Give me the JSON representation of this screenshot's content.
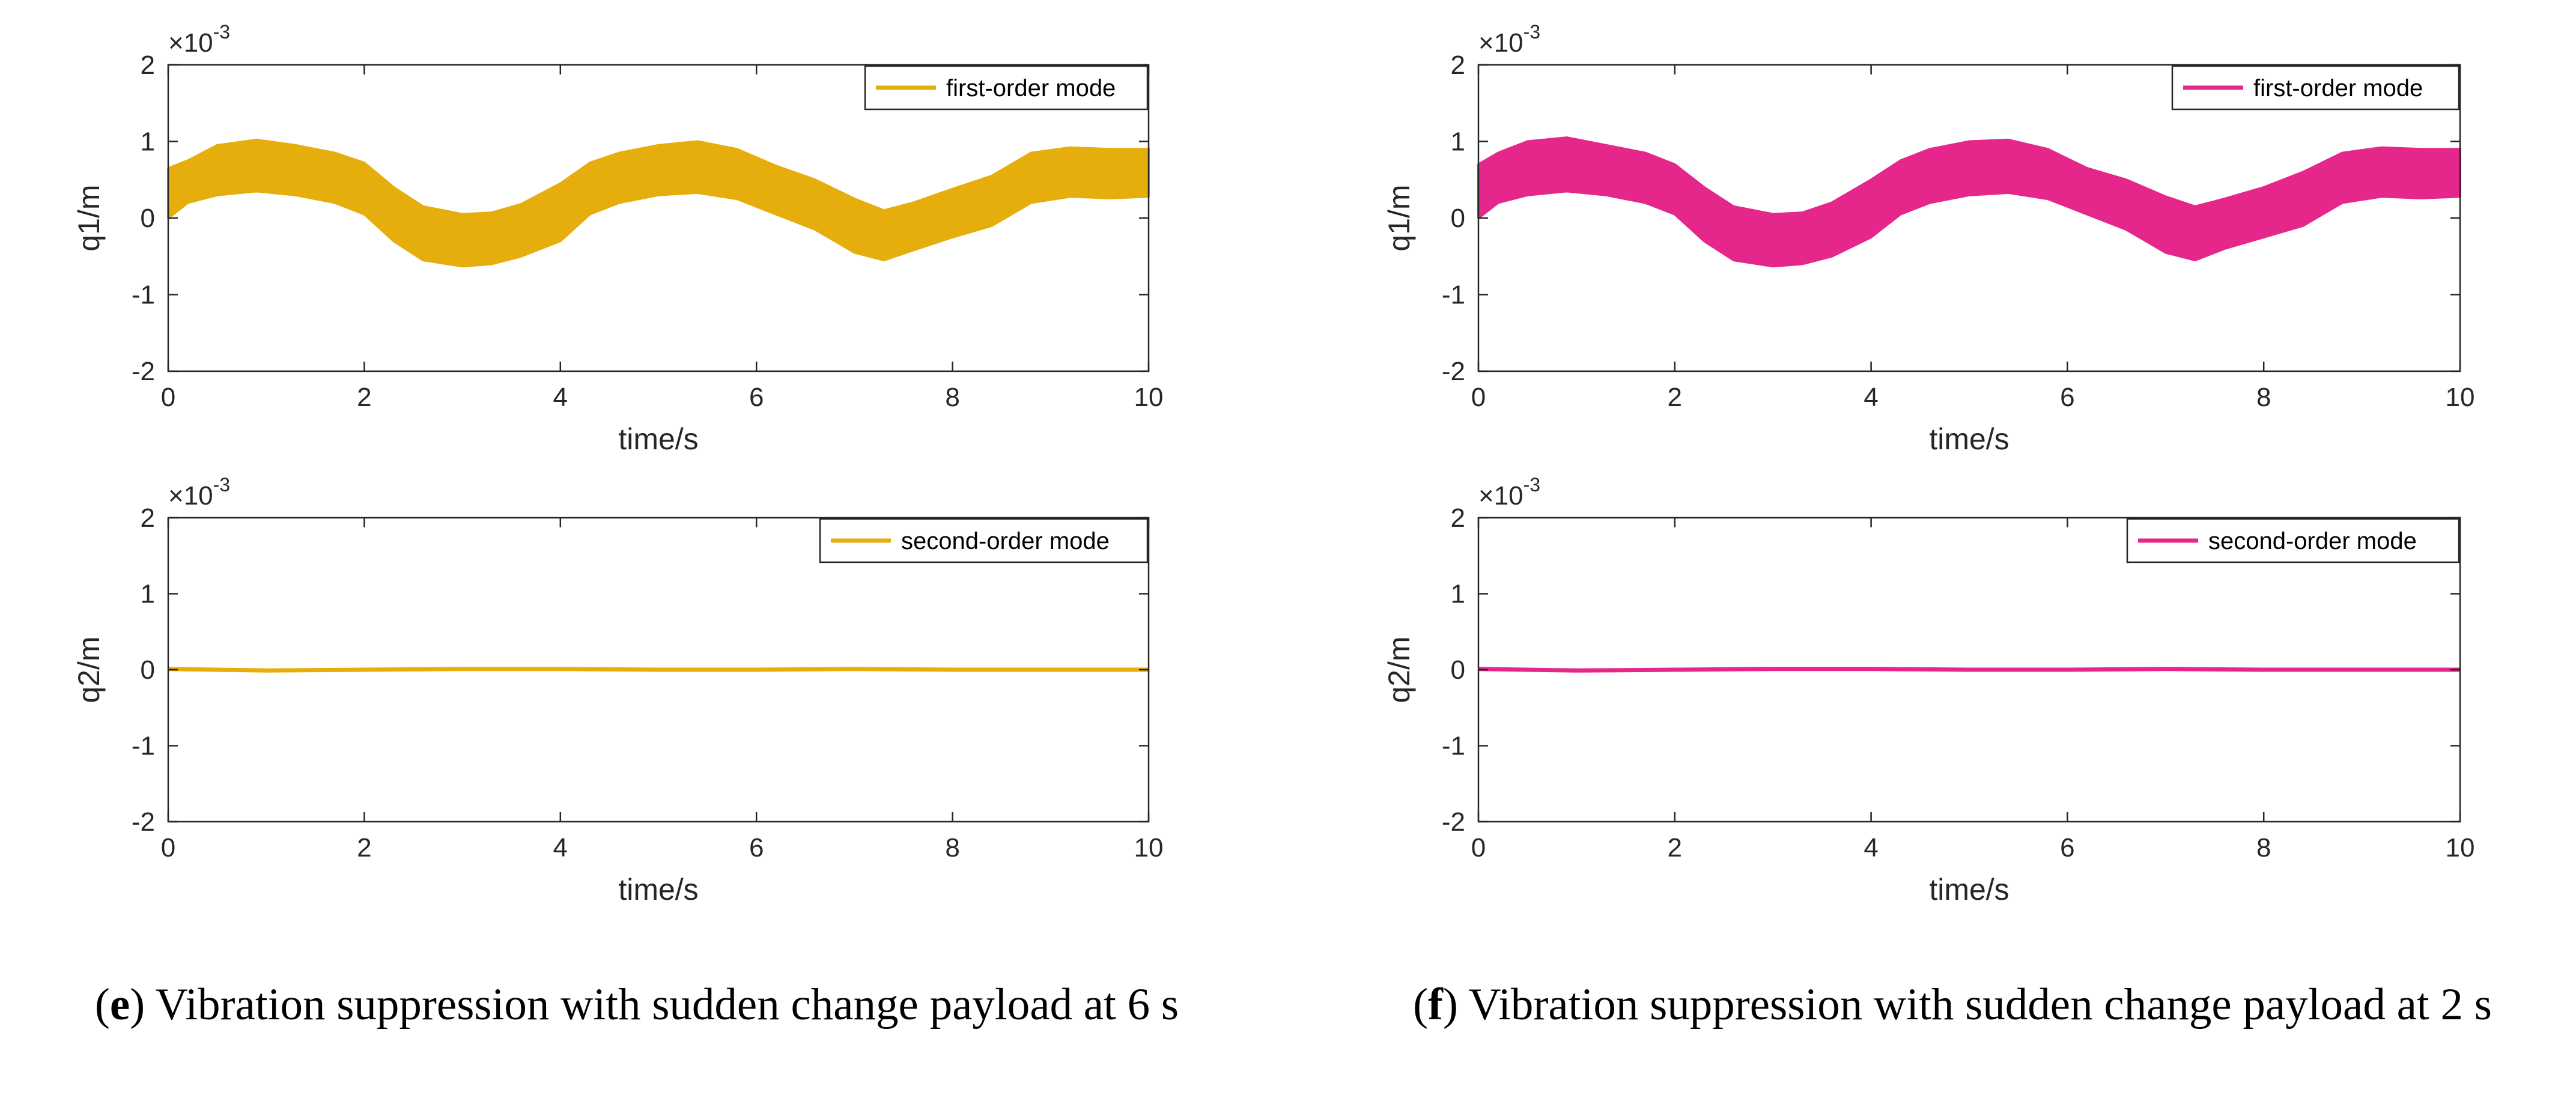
{
  "colors": {
    "e": "#E6AE0C",
    "f": "#E5268A",
    "axis": "#262626"
  },
  "chart_data": [
    {
      "panel": "e",
      "position": "top",
      "type": "line",
      "title": "",
      "xlabel": "time/s",
      "ylabel": "q1/m",
      "xlim": [
        0,
        10
      ],
      "ylim": [
        -2,
        2
      ],
      "xticks": [
        0,
        2,
        4,
        6,
        8,
        10
      ],
      "yticks": [
        -2,
        -1,
        0,
        1,
        2
      ],
      "y_exponent_base": "×10",
      "y_exponent_power": "-3",
      "series": [
        {
          "name": "first-order mode",
          "render": "band",
          "x": [
            0.0,
            0.2,
            0.5,
            0.9,
            1.3,
            1.7,
            2.0,
            2.3,
            2.6,
            3.0,
            3.3,
            3.6,
            4.0,
            4.3,
            4.6,
            5.0,
            5.4,
            5.8,
            6.2,
            6.6,
            7.0,
            7.3,
            7.6,
            8.0,
            8.4,
            8.8,
            9.2,
            9.6,
            10.0
          ],
          "upper": [
            0.65,
            0.75,
            0.95,
            1.02,
            0.95,
            0.85,
            0.72,
            0.4,
            0.15,
            0.05,
            0.07,
            0.18,
            0.45,
            0.72,
            0.85,
            0.95,
            1.0,
            0.9,
            0.68,
            0.5,
            0.25,
            0.1,
            0.2,
            0.38,
            0.55,
            0.85,
            0.92,
            0.9,
            0.9
          ],
          "lower": [
            0.0,
            0.2,
            0.3,
            0.35,
            0.3,
            0.2,
            0.05,
            -0.3,
            -0.55,
            -0.63,
            -0.6,
            -0.5,
            -0.3,
            0.05,
            0.2,
            0.3,
            0.33,
            0.25,
            0.05,
            -0.15,
            -0.45,
            -0.55,
            -0.42,
            -0.25,
            -0.1,
            0.2,
            0.28,
            0.26,
            0.28
          ]
        }
      ]
    },
    {
      "panel": "e",
      "position": "bottom",
      "type": "line",
      "title": "",
      "xlabel": "time/s",
      "ylabel": "q2/m",
      "xlim": [
        0,
        10
      ],
      "ylim": [
        -2,
        2
      ],
      "xticks": [
        0,
        2,
        4,
        6,
        8,
        10
      ],
      "yticks": [
        -2,
        -1,
        0,
        1,
        2
      ],
      "y_exponent_base": "×10",
      "y_exponent_power": "-3",
      "series": [
        {
          "name": "second-order mode",
          "render": "line",
          "x": [
            0,
            1,
            2,
            3,
            4,
            5,
            6,
            7,
            8,
            9,
            10
          ],
          "y": [
            0.01,
            -0.01,
            0.0,
            0.01,
            0.01,
            0.0,
            0.0,
            0.01,
            0.0,
            0.0,
            0.0
          ]
        }
      ]
    },
    {
      "panel": "f",
      "position": "top",
      "type": "line",
      "title": "",
      "xlabel": "time/s",
      "ylabel": "q1/m",
      "xlim": [
        0,
        10
      ],
      "ylim": [
        -2,
        2
      ],
      "xticks": [
        0,
        2,
        4,
        6,
        8,
        10
      ],
      "yticks": [
        -2,
        -1,
        0,
        1,
        2
      ],
      "y_exponent_base": "×10",
      "y_exponent_power": "-3",
      "series": [
        {
          "name": "first-order mode",
          "render": "band",
          "x": [
            0.0,
            0.2,
            0.5,
            0.9,
            1.3,
            1.7,
            2.0,
            2.3,
            2.6,
            3.0,
            3.3,
            3.6,
            4.0,
            4.3,
            4.6,
            5.0,
            5.4,
            5.8,
            6.2,
            6.6,
            7.0,
            7.3,
            7.6,
            8.0,
            8.4,
            8.8,
            9.2,
            9.6,
            10.0
          ],
          "upper": [
            0.7,
            0.85,
            1.0,
            1.05,
            0.95,
            0.85,
            0.7,
            0.4,
            0.15,
            0.05,
            0.07,
            0.2,
            0.5,
            0.75,
            0.9,
            1.0,
            1.02,
            0.9,
            0.65,
            0.5,
            0.28,
            0.15,
            0.25,
            0.4,
            0.6,
            0.85,
            0.92,
            0.9,
            0.9
          ],
          "lower": [
            0.0,
            0.2,
            0.3,
            0.35,
            0.3,
            0.2,
            0.05,
            -0.3,
            -0.55,
            -0.63,
            -0.6,
            -0.5,
            -0.25,
            0.05,
            0.2,
            0.3,
            0.33,
            0.25,
            0.05,
            -0.15,
            -0.45,
            -0.55,
            -0.4,
            -0.25,
            -0.1,
            0.2,
            0.28,
            0.26,
            0.28
          ]
        }
      ]
    },
    {
      "panel": "f",
      "position": "bottom",
      "type": "line",
      "title": "",
      "xlabel": "time/s",
      "ylabel": "q2/m",
      "xlim": [
        0,
        10
      ],
      "ylim": [
        -2,
        2
      ],
      "xticks": [
        0,
        2,
        4,
        6,
        8,
        10
      ],
      "yticks": [
        -2,
        -1,
        0,
        1,
        2
      ],
      "y_exponent_base": "×10",
      "y_exponent_power": "-3",
      "series": [
        {
          "name": "second-order mode",
          "render": "line",
          "x": [
            0,
            1,
            2,
            3,
            4,
            5,
            6,
            7,
            8,
            9,
            10
          ],
          "y": [
            0.01,
            -0.01,
            0.0,
            0.01,
            0.01,
            0.0,
            0.0,
            0.01,
            0.0,
            0.0,
            0.0
          ]
        }
      ]
    }
  ],
  "captions": {
    "e": {
      "letter": "e",
      "text": "Vibration suppression with sudden change payload at 6 s"
    },
    "f": {
      "letter": "f",
      "text": "Vibration suppression with sudden change payload at 2 s"
    }
  }
}
